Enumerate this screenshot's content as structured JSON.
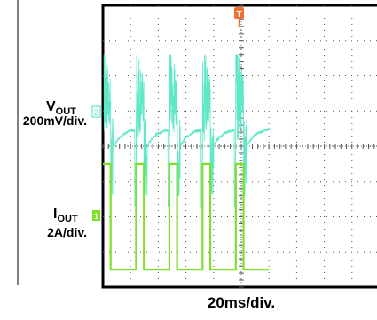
{
  "chart_data": {
    "type": "line",
    "title": "",
    "xlabel": "20ms/div.",
    "grid": true,
    "colors": {
      "vout": "#5fe8c8",
      "iout": "#7fe02a",
      "trigger": "#f07030",
      "frame": "#000000",
      "grid": "#555555"
    },
    "channels": [
      {
        "name_main": "V",
        "name_sub": "OUT",
        "scale": "200mV/div.",
        "marker": "2",
        "icon": "channel-2-marker"
      },
      {
        "name_main": "I",
        "name_sub": "OUT",
        "scale": "2A/div.",
        "marker": "1",
        "icon": "channel-1-marker"
      }
    ],
    "trigger_marker": "T",
    "divisions": {
      "x": 10,
      "y": 8
    },
    "x_units": "ms",
    "period_ms": 24,
    "pulses_start_ms": [
      0,
      24,
      48,
      72,
      96
    ],
    "series": [
      {
        "name": "IOUT",
        "x_ms": [
          0,
          5.6,
          5.6,
          24,
          24,
          29.6,
          29.6,
          48,
          48,
          53.6,
          53.6,
          72,
          72,
          77.6,
          77.6,
          96,
          96,
          101.6,
          101.6,
          120
        ],
        "values_div": [
          3.5,
          3.5,
          0.5,
          0.5,
          3.5,
          3.5,
          0.5,
          0.5,
          3.5,
          3.5,
          0.5,
          0.5,
          3.5,
          3.5,
          0.5,
          0.5,
          3.5,
          3.5,
          0.5,
          0.5
        ]
      },
      {
        "name": "VOUT",
        "description_values": {
          "baseline_div": 4.5,
          "overshoot_peak_div": 6.6,
          "undershoot_div": 2.6,
          "recovery_ms": 10
        }
      }
    ]
  }
}
